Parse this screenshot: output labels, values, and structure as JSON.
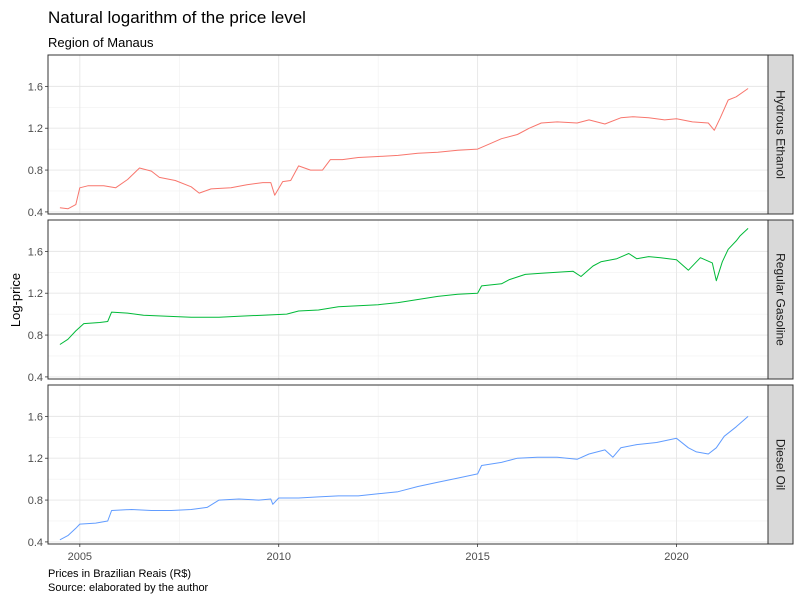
{
  "chart_data": {
    "type": "line",
    "title": "Natural logarithm of the price level",
    "subtitle": "Region of Manaus",
    "ylabel": "Log-price",
    "xlabel": "",
    "caption_lines": [
      "Prices in Brazilian Reais (R$)",
      "Source: elaborated by the author"
    ],
    "x_ticks": [
      2005,
      2010,
      2015,
      2020
    ],
    "y_ticks": [
      0.4,
      0.8,
      1.2,
      1.6
    ],
    "xlim": [
      2004.2,
      2022.3
    ],
    "ylim": [
      0.38,
      1.9
    ],
    "grid": true,
    "facet_layout": "rows",
    "series": [
      {
        "name": "Hydrous Ethanol",
        "color": "#F8766D",
        "points": [
          [
            2004.5,
            0.44
          ],
          [
            2004.7,
            0.43
          ],
          [
            2004.9,
            0.47
          ],
          [
            2005.0,
            0.63
          ],
          [
            2005.2,
            0.65
          ],
          [
            2005.6,
            0.65
          ],
          [
            2005.9,
            0.63
          ],
          [
            2006.2,
            0.71
          ],
          [
            2006.5,
            0.82
          ],
          [
            2006.8,
            0.79
          ],
          [
            2007.0,
            0.73
          ],
          [
            2007.4,
            0.7
          ],
          [
            2007.8,
            0.64
          ],
          [
            2008.0,
            0.58
          ],
          [
            2008.3,
            0.62
          ],
          [
            2008.8,
            0.63
          ],
          [
            2009.2,
            0.66
          ],
          [
            2009.6,
            0.68
          ],
          [
            2009.8,
            0.68
          ],
          [
            2009.9,
            0.56
          ],
          [
            2010.1,
            0.69
          ],
          [
            2010.3,
            0.7
          ],
          [
            2010.5,
            0.84
          ],
          [
            2010.8,
            0.8
          ],
          [
            2011.1,
            0.8
          ],
          [
            2011.3,
            0.9
          ],
          [
            2011.6,
            0.9
          ],
          [
            2012.0,
            0.92
          ],
          [
            2012.5,
            0.93
          ],
          [
            2013.0,
            0.94
          ],
          [
            2013.5,
            0.96
          ],
          [
            2014.0,
            0.97
          ],
          [
            2014.5,
            0.99
          ],
          [
            2015.0,
            1.0
          ],
          [
            2015.3,
            1.05
          ],
          [
            2015.6,
            1.1
          ],
          [
            2016.0,
            1.14
          ],
          [
            2016.3,
            1.2
          ],
          [
            2016.6,
            1.25
          ],
          [
            2017.0,
            1.26
          ],
          [
            2017.5,
            1.25
          ],
          [
            2017.8,
            1.28
          ],
          [
            2018.2,
            1.24
          ],
          [
            2018.6,
            1.3
          ],
          [
            2018.9,
            1.31
          ],
          [
            2019.3,
            1.3
          ],
          [
            2019.7,
            1.28
          ],
          [
            2020.0,
            1.29
          ],
          [
            2020.4,
            1.26
          ],
          [
            2020.8,
            1.25
          ],
          [
            2020.95,
            1.18
          ],
          [
            2021.1,
            1.3
          ],
          [
            2021.3,
            1.47
          ],
          [
            2021.5,
            1.5
          ],
          [
            2021.8,
            1.58
          ]
        ]
      },
      {
        "name": "Regular Gasoline",
        "color": "#00BA38",
        "points": [
          [
            2004.5,
            0.71
          ],
          [
            2004.7,
            0.76
          ],
          [
            2004.9,
            0.84
          ],
          [
            2005.1,
            0.91
          ],
          [
            2005.5,
            0.92
          ],
          [
            2005.7,
            0.93
          ],
          [
            2005.8,
            1.02
          ],
          [
            2006.2,
            1.01
          ],
          [
            2006.6,
            0.99
          ],
          [
            2007.2,
            0.98
          ],
          [
            2007.8,
            0.97
          ],
          [
            2008.5,
            0.97
          ],
          [
            2009.0,
            0.98
          ],
          [
            2009.6,
            0.99
          ],
          [
            2010.2,
            1.0
          ],
          [
            2010.5,
            1.03
          ],
          [
            2011.0,
            1.04
          ],
          [
            2011.5,
            1.07
          ],
          [
            2012.0,
            1.08
          ],
          [
            2012.5,
            1.09
          ],
          [
            2013.0,
            1.11
          ],
          [
            2013.5,
            1.14
          ],
          [
            2014.0,
            1.17
          ],
          [
            2014.5,
            1.19
          ],
          [
            2015.0,
            1.2
          ],
          [
            2015.1,
            1.27
          ],
          [
            2015.6,
            1.29
          ],
          [
            2015.8,
            1.33
          ],
          [
            2016.2,
            1.38
          ],
          [
            2016.6,
            1.39
          ],
          [
            2017.0,
            1.4
          ],
          [
            2017.4,
            1.41
          ],
          [
            2017.6,
            1.36
          ],
          [
            2017.9,
            1.46
          ],
          [
            2018.1,
            1.5
          ],
          [
            2018.5,
            1.53
          ],
          [
            2018.8,
            1.58
          ],
          [
            2019.0,
            1.53
          ],
          [
            2019.3,
            1.55
          ],
          [
            2019.6,
            1.54
          ],
          [
            2020.0,
            1.52
          ],
          [
            2020.3,
            1.42
          ],
          [
            2020.6,
            1.54
          ],
          [
            2020.9,
            1.49
          ],
          [
            2021.0,
            1.32
          ],
          [
            2021.15,
            1.5
          ],
          [
            2021.3,
            1.62
          ],
          [
            2021.5,
            1.7
          ],
          [
            2021.6,
            1.75
          ],
          [
            2021.8,
            1.82
          ]
        ]
      },
      {
        "name": "Diesel Oil",
        "color": "#619CFF",
        "points": [
          [
            2004.5,
            0.42
          ],
          [
            2004.7,
            0.46
          ],
          [
            2004.9,
            0.53
          ],
          [
            2005.0,
            0.57
          ],
          [
            2005.4,
            0.58
          ],
          [
            2005.7,
            0.6
          ],
          [
            2005.8,
            0.7
          ],
          [
            2006.3,
            0.71
          ],
          [
            2006.8,
            0.7
          ],
          [
            2007.3,
            0.7
          ],
          [
            2007.8,
            0.71
          ],
          [
            2008.2,
            0.73
          ],
          [
            2008.5,
            0.8
          ],
          [
            2009.0,
            0.81
          ],
          [
            2009.5,
            0.8
          ],
          [
            2009.8,
            0.81
          ],
          [
            2009.85,
            0.76
          ],
          [
            2010.0,
            0.82
          ],
          [
            2010.5,
            0.82
          ],
          [
            2011.0,
            0.83
          ],
          [
            2011.5,
            0.84
          ],
          [
            2012.0,
            0.84
          ],
          [
            2012.5,
            0.86
          ],
          [
            2013.0,
            0.88
          ],
          [
            2013.5,
            0.93
          ],
          [
            2014.0,
            0.97
          ],
          [
            2014.5,
            1.01
          ],
          [
            2015.0,
            1.05
          ],
          [
            2015.1,
            1.13
          ],
          [
            2015.6,
            1.16
          ],
          [
            2016.0,
            1.2
          ],
          [
            2016.5,
            1.21
          ],
          [
            2017.0,
            1.21
          ],
          [
            2017.5,
            1.19
          ],
          [
            2017.8,
            1.24
          ],
          [
            2018.2,
            1.28
          ],
          [
            2018.4,
            1.21
          ],
          [
            2018.6,
            1.3
          ],
          [
            2019.0,
            1.33
          ],
          [
            2019.5,
            1.35
          ],
          [
            2020.0,
            1.39
          ],
          [
            2020.3,
            1.3
          ],
          [
            2020.5,
            1.26
          ],
          [
            2020.8,
            1.24
          ],
          [
            2021.0,
            1.3
          ],
          [
            2021.2,
            1.41
          ],
          [
            2021.5,
            1.5
          ],
          [
            2021.8,
            1.6
          ]
        ]
      }
    ]
  }
}
